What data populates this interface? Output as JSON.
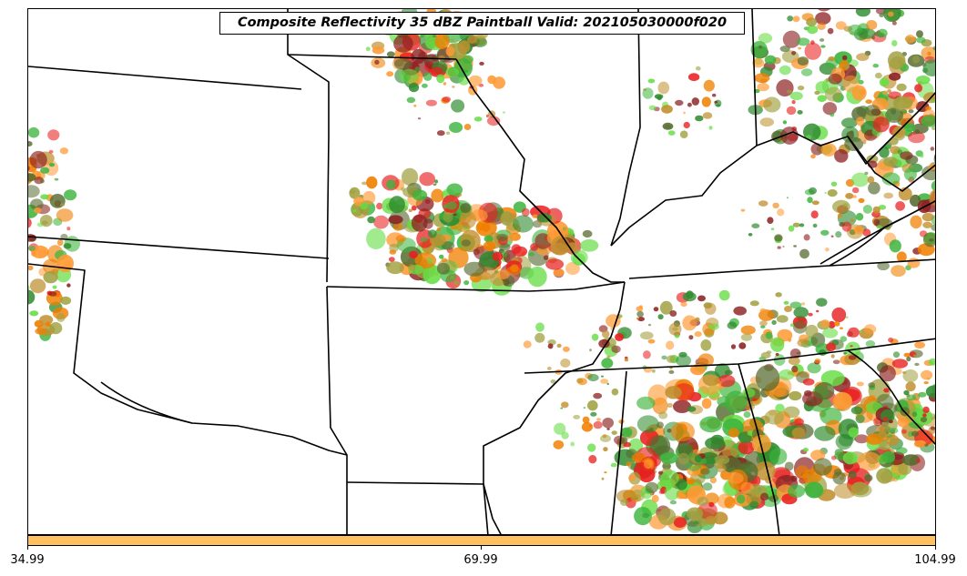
{
  "title": "Composite Reflectivity 35 dBZ Paintball Valid: 202105030000f020",
  "colorbar": {
    "color": "#ffc060",
    "ticks": [
      "34.99",
      "69.99",
      "104.99"
    ]
  },
  "palette": [
    "#e82020",
    "#f07f00",
    "#3cb43c",
    "#a0a040",
    "#8b2020",
    "#ff9933",
    "#66dd44",
    "#2e8b2e",
    "#c09030",
    "#556b2f"
  ],
  "background": "#ffffff",
  "border_color": "#000000"
}
